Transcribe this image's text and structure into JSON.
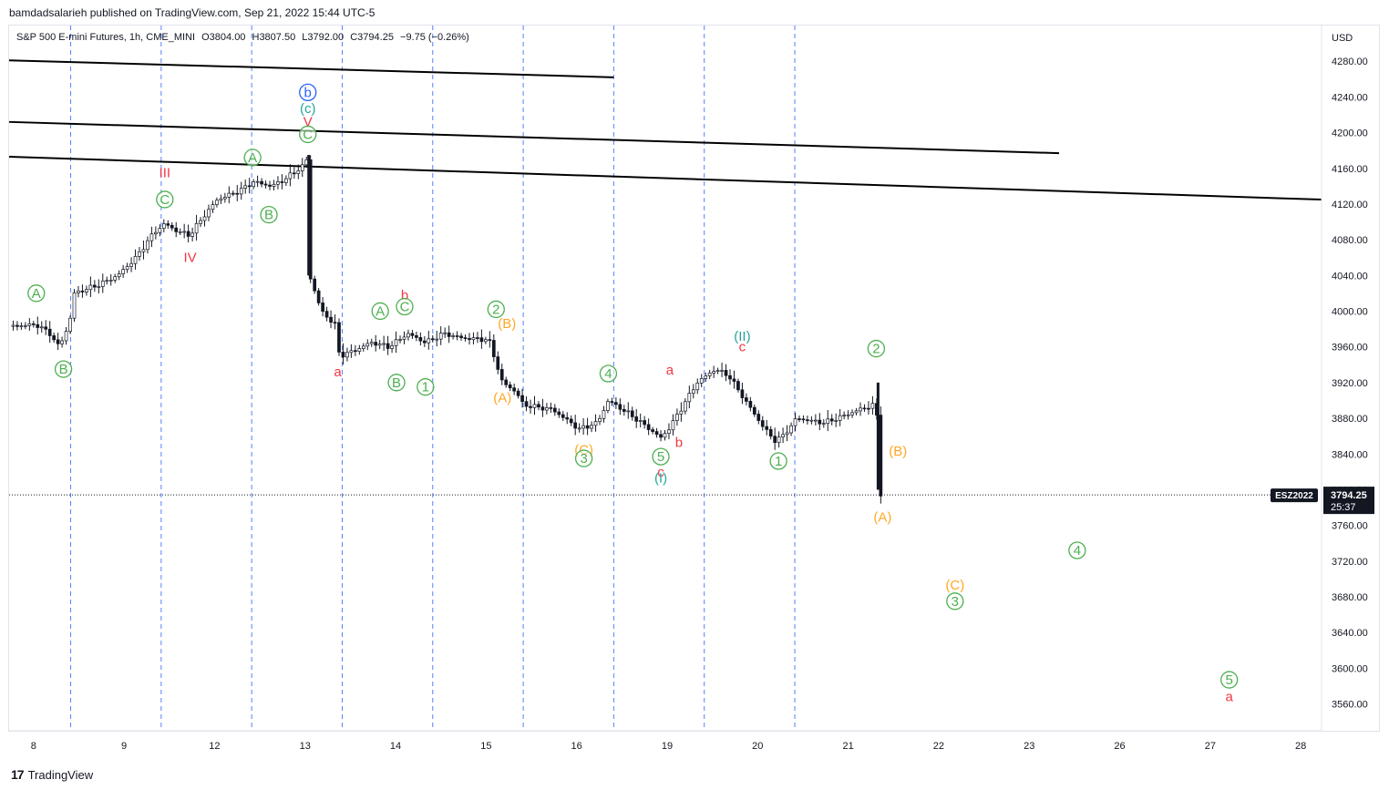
{
  "publisher": "bamdadsalarieh published on TradingView.com, Sep 21, 2022 15:44 UTC-5",
  "symbol_info": {
    "name": "S&P 500 E-mini Futures, 1h, CME_MINI",
    "open": "O3804.00",
    "high": "H3807.50",
    "low": "L3792.00",
    "close": "C3794.25",
    "change": "−9.75 (−0.26%)"
  },
  "currency": "USD",
  "price_tag": {
    "symbol": "ESZ2022",
    "price": "3794.25",
    "countdown": "25:37"
  },
  "footer_brand": "TradingView",
  "colors": {
    "green": "#4caf50",
    "red": "#f23645",
    "orange": "#ffa726",
    "teal": "#26a69a",
    "blue": "#2962ff",
    "line": "#000000"
  },
  "chart_data": {
    "type": "candlestick",
    "ylim": [
      3530,
      4320
    ],
    "y_ticks": [
      3560,
      3600,
      3640,
      3680,
      3720,
      3760,
      3800,
      3840,
      3880,
      3920,
      3960,
      4000,
      4040,
      4080,
      4120,
      4160,
      4200,
      4240,
      4280
    ],
    "y_tick_labels": [
      "3560.00",
      "3600.00",
      "3640.00",
      "3680.00",
      "3720.00",
      "3760.00",
      "3800.00",
      "3840.00",
      "3880.00",
      "3920.00",
      "3960.00",
      "4000.00",
      "4040.00",
      "4080.00",
      "4120.00",
      "4160.00",
      "4200.00",
      "4240.00",
      "4280.00"
    ],
    "x_labels": [
      "8",
      "9",
      "12",
      "13",
      "14",
      "15",
      "16",
      "19",
      "20",
      "21",
      "22",
      "23",
      "26",
      "27",
      "28"
    ],
    "x_domain": [
      0,
      14.5
    ],
    "session_dividers": [
      0.68,
      1.68,
      2.68,
      3.68,
      4.68,
      5.68,
      6.68,
      7.68,
      8.68
    ],
    "price_path": [
      [
        0,
        3983
      ],
      [
        0.3,
        3985
      ],
      [
        0.45,
        3975
      ],
      [
        0.55,
        3960
      ],
      [
        0.62,
        3975
      ],
      [
        0.7,
        4000
      ],
      [
        0.72,
        4020
      ],
      [
        1.0,
        4030
      ],
      [
        1.2,
        4040
      ],
      [
        1.4,
        4060
      ],
      [
        1.6,
        4088
      ],
      [
        1.72,
        4098
      ],
      [
        1.85,
        4090
      ],
      [
        2.0,
        4085
      ],
      [
        2.1,
        4100
      ],
      [
        2.3,
        4125
      ],
      [
        2.55,
        4135
      ],
      [
        2.7,
        4145
      ],
      [
        2.9,
        4140
      ],
      [
        3.05,
        4148
      ],
      [
        3.25,
        4163
      ],
      [
        3.3,
        4172
      ],
      [
        3.32,
        4040
      ],
      [
        3.45,
        4000
      ],
      [
        3.6,
        3985
      ],
      [
        3.65,
        3950
      ],
      [
        3.8,
        3955
      ],
      [
        4.0,
        3965
      ],
      [
        4.2,
        3960
      ],
      [
        4.4,
        3975
      ],
      [
        4.6,
        3965
      ],
      [
        4.8,
        3975
      ],
      [
        5.0,
        3970
      ],
      [
        5.3,
        3968
      ],
      [
        5.45,
        3920
      ],
      [
        5.6,
        3910
      ],
      [
        5.68,
        3895
      ],
      [
        6.0,
        3890
      ],
      [
        6.3,
        3868
      ],
      [
        6.5,
        3875
      ],
      [
        6.62,
        3900
      ],
      [
        6.85,
        3885
      ],
      [
        7.05,
        3870
      ],
      [
        7.2,
        3858
      ],
      [
        7.3,
        3870
      ],
      [
        7.45,
        3895
      ],
      [
        7.6,
        3920
      ],
      [
        7.8,
        3935
      ],
      [
        7.95,
        3928
      ],
      [
        8.1,
        3905
      ],
      [
        8.3,
        3875
      ],
      [
        8.45,
        3855
      ],
      [
        8.55,
        3860
      ],
      [
        8.7,
        3880
      ],
      [
        9.0,
        3875
      ],
      [
        9.15,
        3880
      ],
      [
        9.4,
        3890
      ],
      [
        9.55,
        3895
      ],
      [
        9.58,
        3910
      ],
      [
        9.6,
        3800
      ],
      [
        9.64,
        3794.25
      ]
    ],
    "current_price": 3794.25,
    "trend_lines": [
      {
        "from": [
          0,
          4281
        ],
        "to": [
          6.68,
          4262
        ]
      },
      {
        "from": [
          0,
          4212
        ],
        "to": [
          11.6,
          4177
        ]
      },
      {
        "from": [
          0,
          4173
        ],
        "to": [
          14.5,
          4125
        ]
      }
    ],
    "wave_labels": [
      {
        "text": "A",
        "t": 0.3,
        "p": 4015,
        "color": "green",
        "circled": true
      },
      {
        "text": "B",
        "t": 0.6,
        "p": 3930,
        "color": "green",
        "circled": true
      },
      {
        "text": "III",
        "t": 1.72,
        "p": 4150,
        "color": "red",
        "circled": false
      },
      {
        "text": "C",
        "t": 1.72,
        "p": 4120,
        "color": "green",
        "circled": true
      },
      {
        "text": "IV",
        "t": 2.0,
        "p": 4055,
        "color": "red",
        "circled": false
      },
      {
        "text": "A",
        "t": 2.69,
        "p": 4167,
        "color": "green",
        "circled": true
      },
      {
        "text": "B",
        "t": 2.87,
        "p": 4103,
        "color": "green",
        "circled": true
      },
      {
        "text": "b",
        "t": 3.3,
        "p": 4240,
        "color": "blue",
        "circled": true
      },
      {
        "text": "(c)",
        "t": 3.3,
        "p": 4222,
        "color": "teal",
        "circled": false
      },
      {
        "text": "V",
        "t": 3.3,
        "p": 4207,
        "color": "red",
        "circled": false
      },
      {
        "text": "C",
        "t": 3.3,
        "p": 4193,
        "color": "green",
        "circled": true
      },
      {
        "text": "a",
        "t": 3.63,
        "p": 3927,
        "color": "red",
        "circled": false
      },
      {
        "text": "A",
        "t": 4.1,
        "p": 3995,
        "color": "green",
        "circled": true
      },
      {
        "text": "b",
        "t": 4.37,
        "p": 4013,
        "color": "red",
        "circled": false
      },
      {
        "text": "C",
        "t": 4.37,
        "p": 4000,
        "color": "green",
        "circled": true
      },
      {
        "text": "B",
        "t": 4.28,
        "p": 3915,
        "color": "green",
        "circled": true
      },
      {
        "text": "1",
        "t": 4.6,
        "p": 3910,
        "color": "green",
        "circled": true
      },
      {
        "text": "2",
        "t": 5.38,
        "p": 3997,
        "color": "green",
        "circled": true
      },
      {
        "text": "(B)",
        "t": 5.5,
        "p": 3981,
        "color": "orange",
        "circled": false
      },
      {
        "text": "(A)",
        "t": 5.45,
        "p": 3898,
        "color": "orange",
        "circled": false
      },
      {
        "text": "4",
        "t": 6.62,
        "p": 3925,
        "color": "green",
        "circled": true
      },
      {
        "text": "a",
        "t": 7.3,
        "p": 3929,
        "color": "red",
        "circled": false
      },
      {
        "text": "(C)",
        "t": 6.35,
        "p": 3840,
        "color": "orange",
        "circled": false
      },
      {
        "text": "3",
        "t": 6.35,
        "p": 3830,
        "color": "green",
        "circled": true
      },
      {
        "text": "b",
        "t": 7.4,
        "p": 3848,
        "color": "red",
        "circled": false
      },
      {
        "text": "5",
        "t": 7.2,
        "p": 3832,
        "color": "green",
        "circled": true
      },
      {
        "text": "c",
        "t": 7.2,
        "p": 3815,
        "color": "red",
        "circled": false
      },
      {
        "text": "(I)",
        "t": 7.2,
        "p": 3808,
        "color": "teal",
        "circled": false
      },
      {
        "text": "(II)",
        "t": 8.1,
        "p": 3967,
        "color": "teal",
        "circled": false
      },
      {
        "text": "c",
        "t": 8.1,
        "p": 3955,
        "color": "red",
        "circled": false
      },
      {
        "text": "1",
        "t": 8.5,
        "p": 3827,
        "color": "green",
        "circled": true
      },
      {
        "text": "2",
        "t": 9.58,
        "p": 3953,
        "color": "green",
        "circled": true
      },
      {
        "text": "(B)",
        "t": 9.82,
        "p": 3838,
        "color": "orange",
        "circled": false
      },
      {
        "text": "(A)",
        "t": 9.65,
        "p": 3764,
        "color": "orange",
        "circled": false
      },
      {
        "text": "4",
        "t": 11.8,
        "p": 3727,
        "color": "green",
        "circled": true
      },
      {
        "text": "(C)",
        "t": 10.45,
        "p": 3688,
        "color": "orange",
        "circled": false
      },
      {
        "text": "3",
        "t": 10.45,
        "p": 3670,
        "color": "green",
        "circled": true
      },
      {
        "text": "5",
        "t": 13.48,
        "p": 3582,
        "color": "green",
        "circled": true
      },
      {
        "text": "a",
        "t": 13.48,
        "p": 3563,
        "color": "red",
        "circled": false
      }
    ]
  }
}
